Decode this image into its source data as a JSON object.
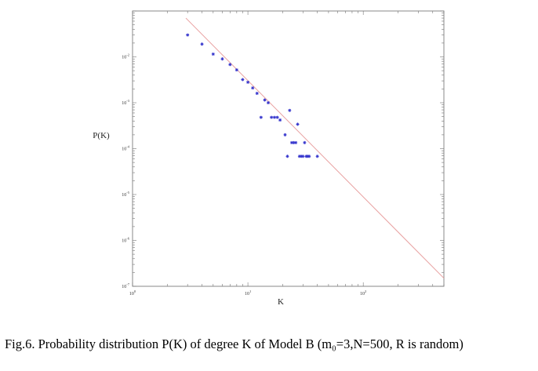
{
  "chart_data": {
    "type": "scatter",
    "xlabel": "K",
    "ylabel": "P(K)",
    "xscale": "log",
    "yscale": "log",
    "xlim": [
      1,
      500
    ],
    "ylim": [
      1e-07,
      0.1
    ],
    "grid": false,
    "x_tick_labels": [
      "10^0",
      "10^1",
      "10^2"
    ],
    "y_tick_labels": [
      "10^-2",
      "10^-3",
      "10^-4",
      "10^-5",
      "10^-6",
      "10^-7"
    ],
    "series": [
      {
        "marker": "*",
        "color": "#3333cc",
        "points": [
          {
            "x": 3,
            "y": 0.03
          },
          {
            "x": 4,
            "y": 0.019
          },
          {
            "x": 5,
            "y": 0.0115
          },
          {
            "x": 6,
            "y": 0.009
          },
          {
            "x": 7,
            "y": 0.0068
          },
          {
            "x": 8,
            "y": 0.0052
          },
          {
            "x": 9,
            "y": 0.0032
          },
          {
            "x": 10,
            "y": 0.0028
          },
          {
            "x": 11,
            "y": 0.0021
          },
          {
            "x": 12,
            "y": 0.0016
          },
          {
            "x": 13,
            "y": 0.00048
          },
          {
            "x": 14,
            "y": 0.00115
          },
          {
            "x": 15,
            "y": 0.001
          },
          {
            "x": 16,
            "y": 0.00048
          },
          {
            "x": 17,
            "y": 0.00048
          },
          {
            "x": 18,
            "y": 0.00048
          },
          {
            "x": 19,
            "y": 0.00042
          },
          {
            "x": 21,
            "y": 0.0002
          },
          {
            "x": 22,
            "y": 6.8e-05
          },
          {
            "x": 23,
            "y": 0.00068
          },
          {
            "x": 24,
            "y": 0.000135
          },
          {
            "x": 25,
            "y": 0.000135
          },
          {
            "x": 26,
            "y": 0.000135
          },
          {
            "x": 27,
            "y": 0.00034
          },
          {
            "x": 28,
            "y": 6.8e-05
          },
          {
            "x": 29,
            "y": 6.8e-05
          },
          {
            "x": 30,
            "y": 6.8e-05
          },
          {
            "x": 31,
            "y": 0.000135
          },
          {
            "x": 32,
            "y": 6.8e-05
          },
          {
            "x": 33,
            "y": 6.8e-05
          },
          {
            "x": 34,
            "y": 6.8e-05
          },
          {
            "x": 40,
            "y": 6.8e-05
          }
        ]
      },
      {
        "type": "line",
        "color": "#e8a0a0",
        "points": [
          {
            "x": 2.9,
            "y": 0.07
          },
          {
            "x": 500,
            "y": 1.5e-07
          }
        ]
      }
    ]
  },
  "caption": "Fig.6. Probability distribution P(K) of degree K of Model B (m₀=3,N=500, R is random)"
}
